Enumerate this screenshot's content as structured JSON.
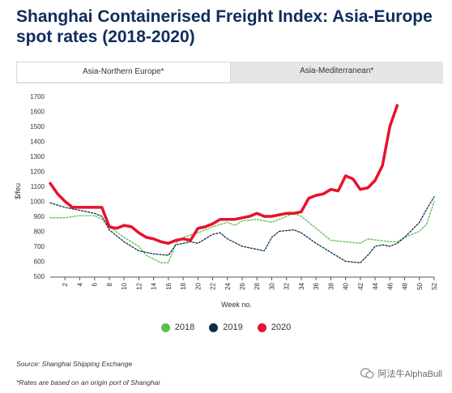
{
  "title": "Shanghai Containerised Freight Index: Asia-Europe spot rates (2018-2020)",
  "tabs": [
    {
      "label": "Asia-Northern Europe*",
      "active": true
    },
    {
      "label": "Asia-Mediterranean*",
      "active": false
    }
  ],
  "source": "Source: Shanghai Shipping Exchange",
  "note": "*Rates are based on an origin port of Shanghai",
  "watermark": "阿法牛AlphaBull",
  "chart_data": {
    "type": "line",
    "xlabel": "Week no.",
    "ylabel": "$/feu",
    "xlim": [
      0,
      52
    ],
    "ylim": [
      500,
      1700
    ],
    "x_ticks": [
      2,
      4,
      6,
      8,
      10,
      12,
      14,
      16,
      18,
      20,
      22,
      24,
      26,
      28,
      30,
      32,
      34,
      36,
      38,
      40,
      42,
      44,
      46,
      48,
      50,
      52
    ],
    "y_ticks": [
      500,
      600,
      700,
      800,
      900,
      1000,
      1100,
      1200,
      1300,
      1400,
      1500,
      1600,
      1700
    ],
    "grid": false,
    "legend": "bottom",
    "series": [
      {
        "name": "2018",
        "color": "#5bbf4f",
        "style": "dotted",
        "points": [
          [
            0,
            890
          ],
          [
            2,
            890
          ],
          [
            4,
            905
          ],
          [
            6,
            905
          ],
          [
            7,
            880
          ],
          [
            8,
            830
          ],
          [
            10,
            760
          ],
          [
            12,
            700
          ],
          [
            13,
            640
          ],
          [
            15,
            590
          ],
          [
            16,
            590
          ],
          [
            17,
            720
          ],
          [
            18,
            760
          ],
          [
            20,
            790
          ],
          [
            21,
            810
          ],
          [
            22,
            830
          ],
          [
            24,
            860
          ],
          [
            25,
            840
          ],
          [
            26,
            870
          ],
          [
            28,
            880
          ],
          [
            30,
            860
          ],
          [
            32,
            900
          ],
          [
            33,
            920
          ],
          [
            34,
            900
          ],
          [
            36,
            820
          ],
          [
            38,
            740
          ],
          [
            40,
            730
          ],
          [
            42,
            720
          ],
          [
            43,
            750
          ],
          [
            46,
            730
          ],
          [
            47,
            730
          ],
          [
            48,
            760
          ],
          [
            50,
            800
          ],
          [
            51,
            850
          ],
          [
            52,
            1000
          ]
        ]
      },
      {
        "name": "2019",
        "color": "#0c2d48",
        "style": "dotted",
        "points": [
          [
            0,
            990
          ],
          [
            2,
            960
          ],
          [
            4,
            940
          ],
          [
            6,
            920
          ],
          [
            7,
            900
          ],
          [
            8,
            810
          ],
          [
            10,
            730
          ],
          [
            12,
            670
          ],
          [
            14,
            650
          ],
          [
            16,
            640
          ],
          [
            17,
            710
          ],
          [
            18,
            720
          ],
          [
            19,
            730
          ],
          [
            20,
            720
          ],
          [
            22,
            780
          ],
          [
            23,
            790
          ],
          [
            24,
            750
          ],
          [
            26,
            700
          ],
          [
            28,
            680
          ],
          [
            29,
            670
          ],
          [
            30,
            760
          ],
          [
            31,
            800
          ],
          [
            33,
            810
          ],
          [
            34,
            790
          ],
          [
            36,
            720
          ],
          [
            38,
            660
          ],
          [
            40,
            600
          ],
          [
            42,
            590
          ],
          [
            43,
            640
          ],
          [
            44,
            700
          ],
          [
            45,
            710
          ],
          [
            46,
            700
          ],
          [
            47,
            720
          ],
          [
            48,
            760
          ],
          [
            50,
            860
          ],
          [
            51,
            950
          ],
          [
            52,
            1030
          ]
        ]
      },
      {
        "name": "2020",
        "color": "#e8112d",
        "style": "solid",
        "points": [
          [
            0,
            1120
          ],
          [
            1,
            1050
          ],
          [
            2,
            1000
          ],
          [
            3,
            960
          ],
          [
            4,
            960
          ],
          [
            6,
            960
          ],
          [
            7,
            960
          ],
          [
            8,
            830
          ],
          [
            9,
            820
          ],
          [
            10,
            840
          ],
          [
            11,
            830
          ],
          [
            12,
            790
          ],
          [
            13,
            760
          ],
          [
            14,
            750
          ],
          [
            15,
            730
          ],
          [
            16,
            720
          ],
          [
            17,
            740
          ],
          [
            18,
            750
          ],
          [
            19,
            740
          ],
          [
            20,
            820
          ],
          [
            21,
            830
          ],
          [
            22,
            850
          ],
          [
            23,
            880
          ],
          [
            24,
            880
          ],
          [
            25,
            880
          ],
          [
            26,
            890
          ],
          [
            27,
            900
          ],
          [
            28,
            920
          ],
          [
            29,
            900
          ],
          [
            30,
            900
          ],
          [
            31,
            910
          ],
          [
            32,
            920
          ],
          [
            33,
            920
          ],
          [
            34,
            930
          ],
          [
            35,
            1020
          ],
          [
            36,
            1040
          ],
          [
            37,
            1050
          ],
          [
            38,
            1080
          ],
          [
            39,
            1070
          ],
          [
            40,
            1170
          ],
          [
            41,
            1150
          ],
          [
            42,
            1080
          ],
          [
            43,
            1090
          ],
          [
            44,
            1140
          ],
          [
            45,
            1240
          ],
          [
            46,
            1500
          ],
          [
            47,
            1640
          ]
        ]
      }
    ]
  }
}
